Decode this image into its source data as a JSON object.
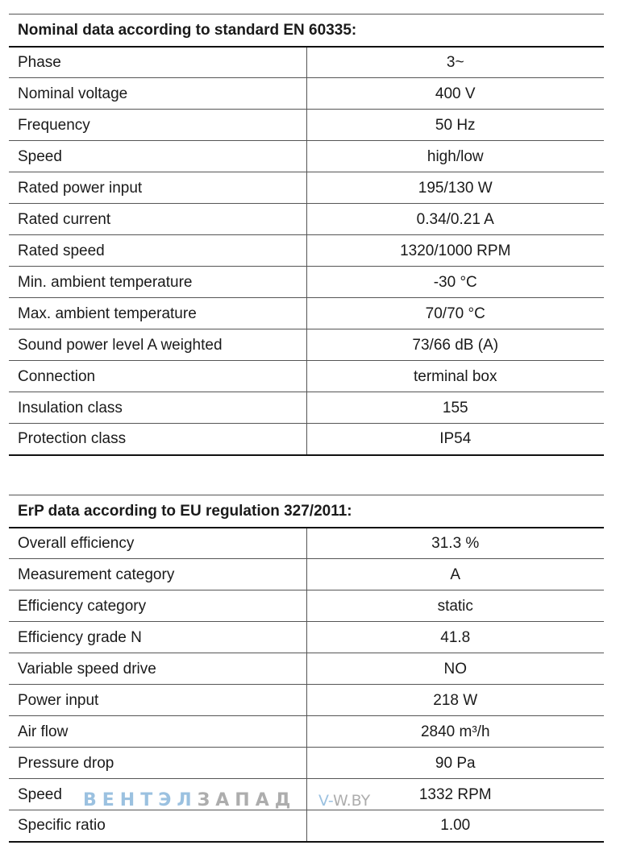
{
  "nominal": {
    "title": "Nominal data according to standard EN 60335:",
    "rows": [
      {
        "label": "Phase",
        "value": "3~"
      },
      {
        "label": "Nominal voltage",
        "value": "400 V"
      },
      {
        "label": "Frequency",
        "value": "50 Hz"
      },
      {
        "label": "Speed",
        "value": "high/low"
      },
      {
        "label": "Rated power input",
        "value": "195/130 W"
      },
      {
        "label": "Rated current",
        "value": "0.34/0.21 A"
      },
      {
        "label": "Rated speed",
        "value": "1320/1000 RPM"
      },
      {
        "label": "Min. ambient temperature",
        "value": "-30 °C"
      },
      {
        "label": "Max. ambient temperature",
        "value": "70/70 °C"
      },
      {
        "label": "Sound power level A weighted",
        "value": "73/66 dB (A)"
      },
      {
        "label": "Connection",
        "value": "terminal box"
      },
      {
        "label": "Insulation class",
        "value": "155"
      },
      {
        "label": "Protection class",
        "value": "IP54"
      }
    ]
  },
  "erp": {
    "title": "ErP data according to EU regulation 327/2011:",
    "rows": [
      {
        "label": "Overall efficiency",
        "value": "31.3 %"
      },
      {
        "label": "Measurement category",
        "value": "A"
      },
      {
        "label": "Efficiency category",
        "value": "static"
      },
      {
        "label": "Efficiency grade N",
        "value": "41.8"
      },
      {
        "label": "Variable speed drive",
        "value": "NO"
      },
      {
        "label": "Power input",
        "value": "218 W"
      },
      {
        "label": "Air flow",
        "value": "2840 m³/h"
      },
      {
        "label": "Pressure drop",
        "value": "90 Pa"
      },
      {
        "label": "Speed",
        "value": "1332 RPM"
      },
      {
        "label": "Specific ratio",
        "value": "1.00"
      }
    ]
  },
  "watermark": {
    "brand_part1": "ВЕНТЭЛ",
    "brand_part2": "ЗАПАД",
    "site_part1": "V-",
    "site_part2": "W.BY",
    "color_primary": "#4a90c8",
    "color_secondary": "#6b6b6b"
  }
}
